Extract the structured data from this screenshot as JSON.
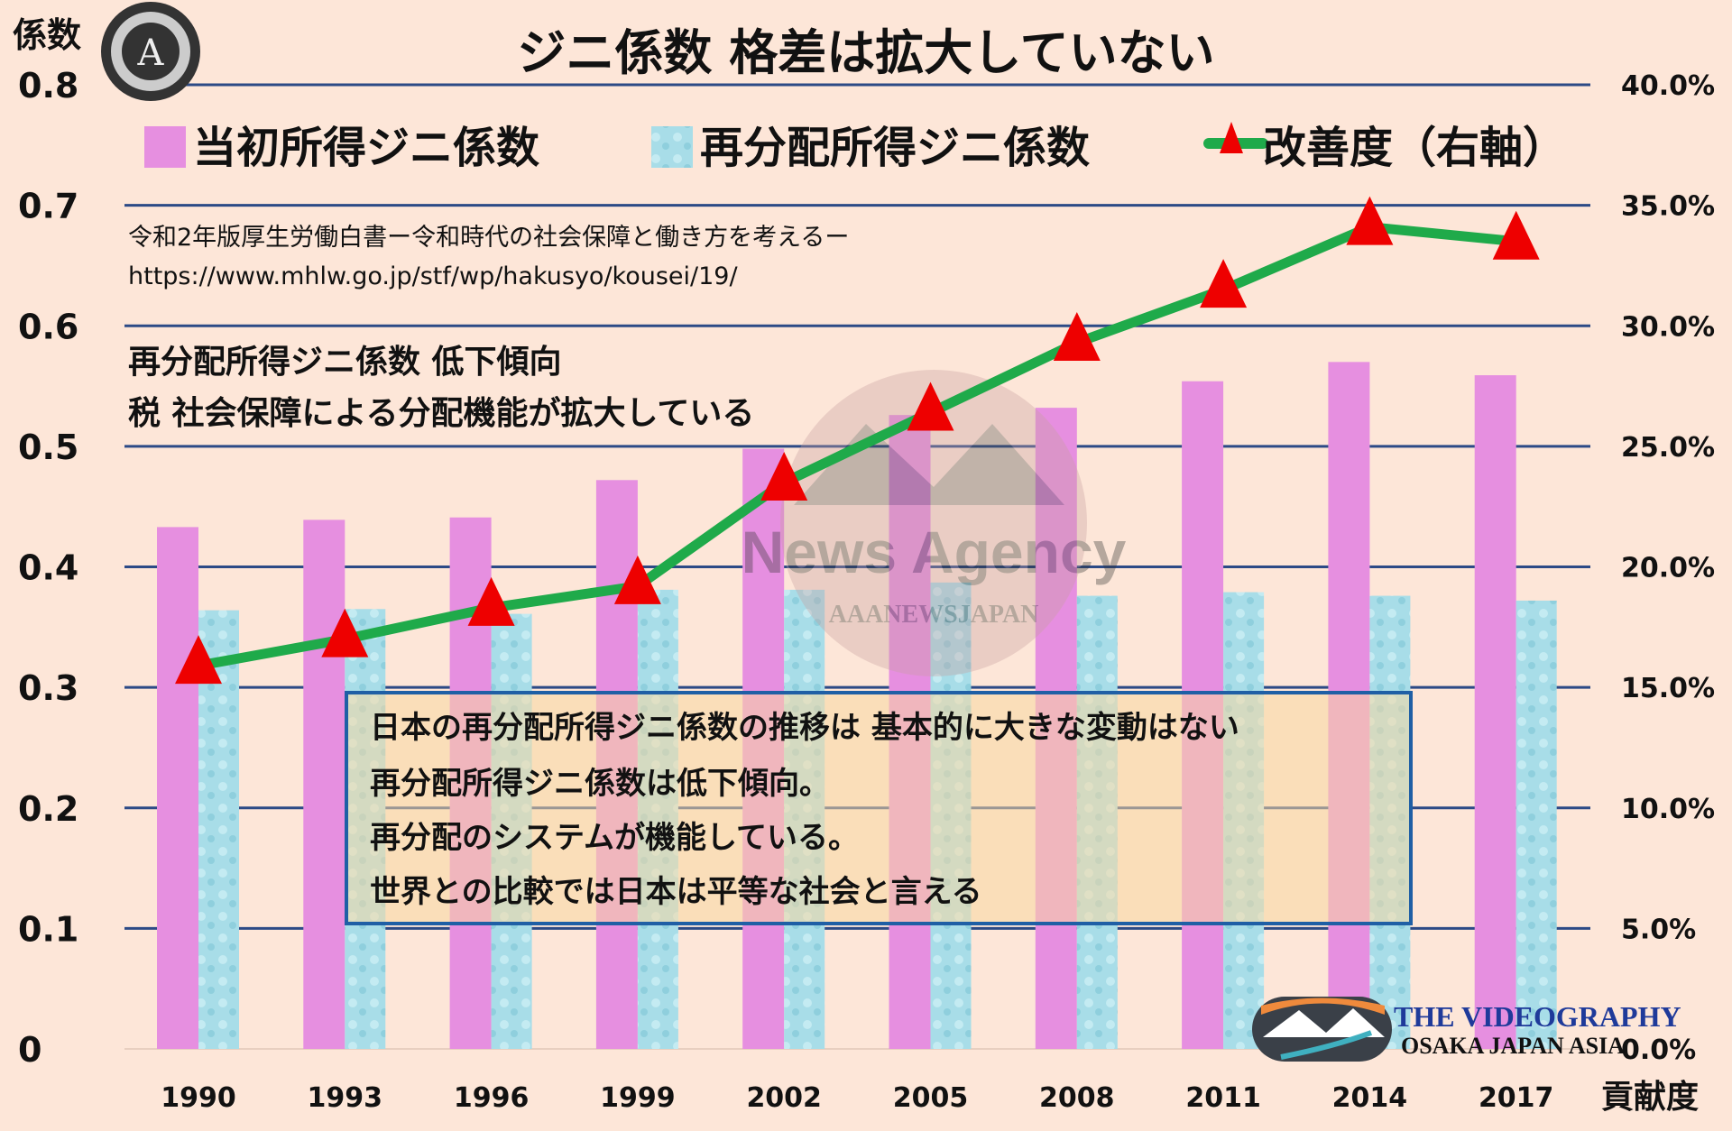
{
  "chart_data": {
    "type": "bar",
    "title": "ジニ係数 格差は拡大していない",
    "ylabel": "係数",
    "y2label": "貢献度",
    "ylim": [
      0,
      0.8
    ],
    "y2lim": [
      0,
      40
    ],
    "yticks": [
      "0",
      "0.1",
      "0.2",
      "0.3",
      "0.4",
      "0.5",
      "0.6",
      "0.7",
      "0.8"
    ],
    "y2ticks": [
      "0.0%",
      "5.0%",
      "10.0%",
      "15.0%",
      "20.0%",
      "25.0%",
      "30.0%",
      "35.0%",
      "40.0%"
    ],
    "grid": true,
    "legend_position": "top",
    "categories": [
      "1990",
      "1993",
      "1996",
      "1999",
      "2002",
      "2005",
      "2008",
      "2011",
      "2014",
      "2017"
    ],
    "series": [
      {
        "name": "当初所得ジニ係数",
        "type": "bar",
        "axis": "left",
        "color": "#e68fe0",
        "values": [
          0.433,
          0.439,
          0.441,
          0.472,
          0.498,
          0.526,
          0.532,
          0.554,
          0.57,
          0.559
        ]
      },
      {
        "name": "再分配所得ジニ係数",
        "type": "bar",
        "axis": "left",
        "color": "#a8dde8",
        "values": [
          0.364,
          0.365,
          0.361,
          0.381,
          0.381,
          0.387,
          0.376,
          0.379,
          0.376,
          0.372
        ]
      },
      {
        "name": "改善度（右軸）",
        "type": "line",
        "axis": "right",
        "color": "#1faa4a",
        "marker_color": "#ee0000",
        "values": [
          15.9,
          17.0,
          18.3,
          19.2,
          23.5,
          26.4,
          29.3,
          31.5,
          34.1,
          33.5
        ]
      }
    ],
    "annotations": {
      "source_line1": "令和2年版厚生労働白書ー令和時代の社会保障と働き方を考えるー",
      "source_line2": "https://www.mhlw.go.jp/stf/wp/hakusyo/kousei/19/",
      "note_line1": "再分配所得ジニ係数 低下傾向",
      "note_line2": "税 社会保障による分配機能が拡大している",
      "box_lines": [
        "日本の再分配所得ジニ係数の推移は 基本的に大きな変動はない",
        "再分配所得ジニ係数は低下傾向。",
        "再分配のシステムが機能している。",
        "世界との比較では日本は平等な社会と言える"
      ]
    }
  },
  "logos": {
    "top_badge": "AAANEWS JAPAN",
    "watermark": "News Agency AAANEWSJAPAN",
    "bottom_line1": "THE VIDEOGRAPHY",
    "bottom_line2": "OSAKA JAPAN ASIA"
  }
}
